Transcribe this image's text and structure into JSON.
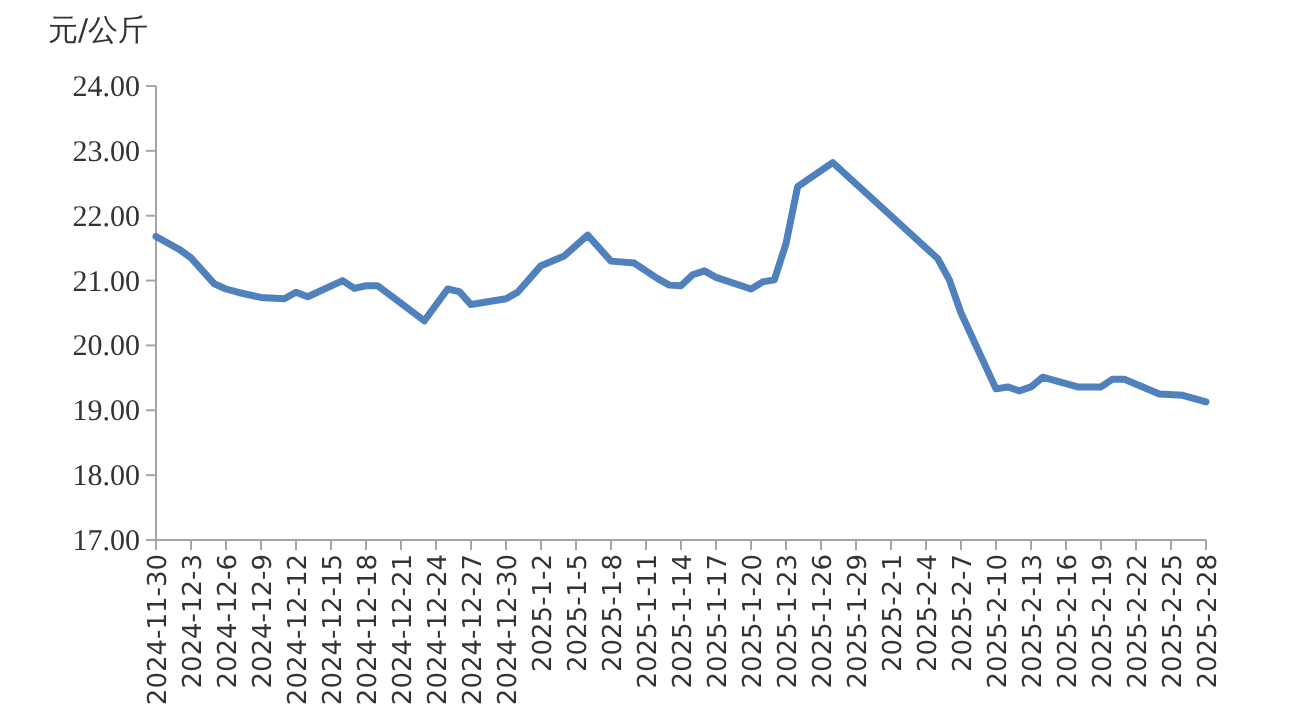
{
  "chart_data": {
    "type": "line",
    "ylabel": "元/公斤",
    "x": [
      "2024-11-30",
      "2024-12-02",
      "2024-12-03",
      "2024-12-05",
      "2024-12-06",
      "2024-12-07",
      "2024-12-09",
      "2024-12-11",
      "2024-12-12",
      "2024-12-13",
      "2024-12-16",
      "2024-12-17",
      "2024-12-18",
      "2024-12-19",
      "2024-12-21",
      "2024-12-23",
      "2024-12-25",
      "2024-12-26",
      "2024-12-27",
      "2024-12-30",
      "2024-12-31",
      "2025-01-02",
      "2025-01-04",
      "2025-01-06",
      "2025-01-08",
      "2025-01-10",
      "2025-01-12",
      "2025-01-13",
      "2025-01-14",
      "2025-01-15",
      "2025-01-16",
      "2025-01-17",
      "2025-01-20",
      "2025-01-21",
      "2025-01-22",
      "2025-01-23",
      "2025-01-24",
      "2025-01-27",
      "2025-02-05",
      "2025-02-06",
      "2025-02-07",
      "2025-02-10",
      "2025-02-11",
      "2025-02-12",
      "2025-02-13",
      "2025-02-14",
      "2025-02-17",
      "2025-02-19",
      "2025-02-20",
      "2025-02-21",
      "2025-02-24",
      "2025-02-26",
      "2025-02-28"
    ],
    "series": [
      {
        "color": "#4f81bd",
        "values": [
          21.68,
          21.48,
          21.35,
          20.95,
          20.87,
          20.82,
          20.74,
          20.72,
          20.82,
          20.75,
          21.0,
          20.88,
          20.92,
          20.92,
          20.65,
          20.38,
          20.87,
          20.83,
          20.63,
          20.72,
          20.82,
          21.23,
          21.38,
          21.7,
          21.3,
          21.27,
          21.03,
          20.93,
          20.92,
          21.09,
          21.15,
          21.05,
          20.87,
          20.98,
          21.01,
          21.57,
          22.45,
          22.82,
          21.34,
          21.01,
          20.5,
          19.33,
          19.36,
          19.3,
          19.36,
          19.51,
          19.36,
          19.36,
          19.48,
          19.48,
          19.25,
          19.23,
          19.13
        ]
      }
    ],
    "xlim": [
      "2024-11-30",
      "2025-02-28"
    ],
    "xticks": [
      {
        "value": "2024-11-30",
        "label": "2024-11-30"
      },
      {
        "value": "2024-12-03",
        "label": "2024-12-3"
      },
      {
        "value": "2024-12-06",
        "label": "2024-12-6"
      },
      {
        "value": "2024-12-09",
        "label": "2024-12-9"
      },
      {
        "value": "2024-12-12",
        "label": "2024-12-12"
      },
      {
        "value": "2024-12-15",
        "label": "2024-12-15"
      },
      {
        "value": "2024-12-18",
        "label": "2024-12-18"
      },
      {
        "value": "2024-12-21",
        "label": "2024-12-21"
      },
      {
        "value": "2024-12-24",
        "label": "2024-12-24"
      },
      {
        "value": "2024-12-27",
        "label": "2024-12-27"
      },
      {
        "value": "2024-12-30",
        "label": "2024-12-30"
      },
      {
        "value": "2025-01-02",
        "label": "2025-1-2"
      },
      {
        "value": "2025-01-05",
        "label": "2025-1-5"
      },
      {
        "value": "2025-01-08",
        "label": "2025-1-8"
      },
      {
        "value": "2025-01-11",
        "label": "2025-1-11"
      },
      {
        "value": "2025-01-14",
        "label": "2025-1-14"
      },
      {
        "value": "2025-01-17",
        "label": "2025-1-17"
      },
      {
        "value": "2025-01-20",
        "label": "2025-1-20"
      },
      {
        "value": "2025-01-23",
        "label": "2025-1-23"
      },
      {
        "value": "2025-01-26",
        "label": "2025-1-26"
      },
      {
        "value": "2025-01-29",
        "label": "2025-1-29"
      },
      {
        "value": "2025-02-01",
        "label": "2025-2-1"
      },
      {
        "value": "2025-02-04",
        "label": "2025-2-4"
      },
      {
        "value": "2025-02-07",
        "label": "2025-2-7"
      },
      {
        "value": "2025-02-10",
        "label": "2025-2-10"
      },
      {
        "value": "2025-02-13",
        "label": "2025-2-13"
      },
      {
        "value": "2025-02-16",
        "label": "2025-2-16"
      },
      {
        "value": "2025-02-19",
        "label": "2025-2-19"
      },
      {
        "value": "2025-02-22",
        "label": "2025-2-22"
      },
      {
        "value": "2025-02-25",
        "label": "2025-2-25"
      },
      {
        "value": "2025-02-28",
        "label": "2025-2-28"
      }
    ],
    "ylim": [
      17,
      24
    ],
    "yticks": [
      {
        "value": 17,
        "label": "17.00"
      },
      {
        "value": 18,
        "label": "18.00"
      },
      {
        "value": 19,
        "label": "19.00"
      },
      {
        "value": 20,
        "label": "20.00"
      },
      {
        "value": 21,
        "label": "21.00"
      },
      {
        "value": 22,
        "label": "22.00"
      },
      {
        "value": 23,
        "label": "23.00"
      },
      {
        "value": 24,
        "label": "24.00"
      }
    ]
  }
}
